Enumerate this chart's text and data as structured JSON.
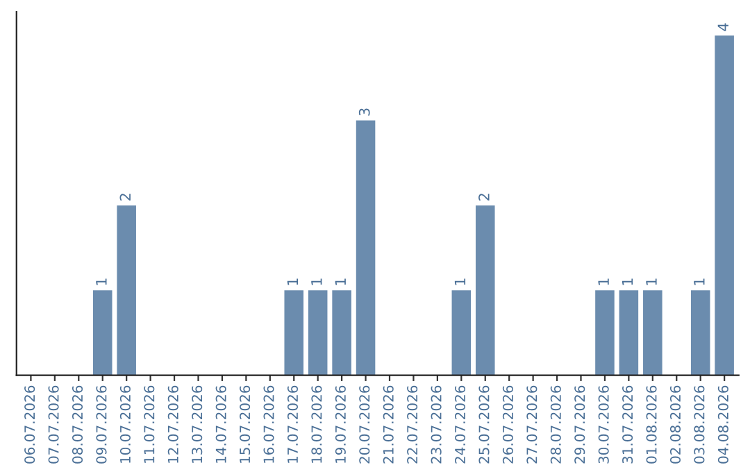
{
  "chart_data": {
    "type": "bar",
    "categories": [
      "06.07.2026",
      "07.07.2026",
      "08.07.2026",
      "09.07.2026",
      "10.07.2026",
      "11.07.2026",
      "12.07.2026",
      "13.07.2026",
      "14.07.2026",
      "15.07.2026",
      "16.07.2026",
      "17.07.2026",
      "18.07.2026",
      "19.07.2026",
      "20.07.2026",
      "21.07.2026",
      "22.07.2026",
      "23.07.2026",
      "24.07.2026",
      "25.07.2026",
      "26.07.2026",
      "27.07.2026",
      "28.07.2026",
      "29.07.2026",
      "30.07.2026",
      "31.07.2026",
      "01.08.2026",
      "02.08.2026",
      "03.08.2026",
      "04.08.2026"
    ],
    "values": [
      0,
      0,
      0,
      1,
      2,
      0,
      0,
      0,
      0,
      0,
      0,
      1,
      1,
      1,
      3,
      0,
      0,
      0,
      1,
      2,
      0,
      0,
      0,
      0,
      1,
      1,
      1,
      0,
      1,
      4
    ],
    "value_labels": [
      null,
      null,
      null,
      "1",
      "2",
      null,
      null,
      null,
      null,
      null,
      null,
      "1",
      "1",
      "1",
      "3",
      null,
      null,
      null,
      "1",
      "2",
      null,
      null,
      null,
      null,
      "1",
      "1",
      "1",
      null,
      "1",
      "4"
    ],
    "color": "#6b8cae",
    "grid": false
  }
}
